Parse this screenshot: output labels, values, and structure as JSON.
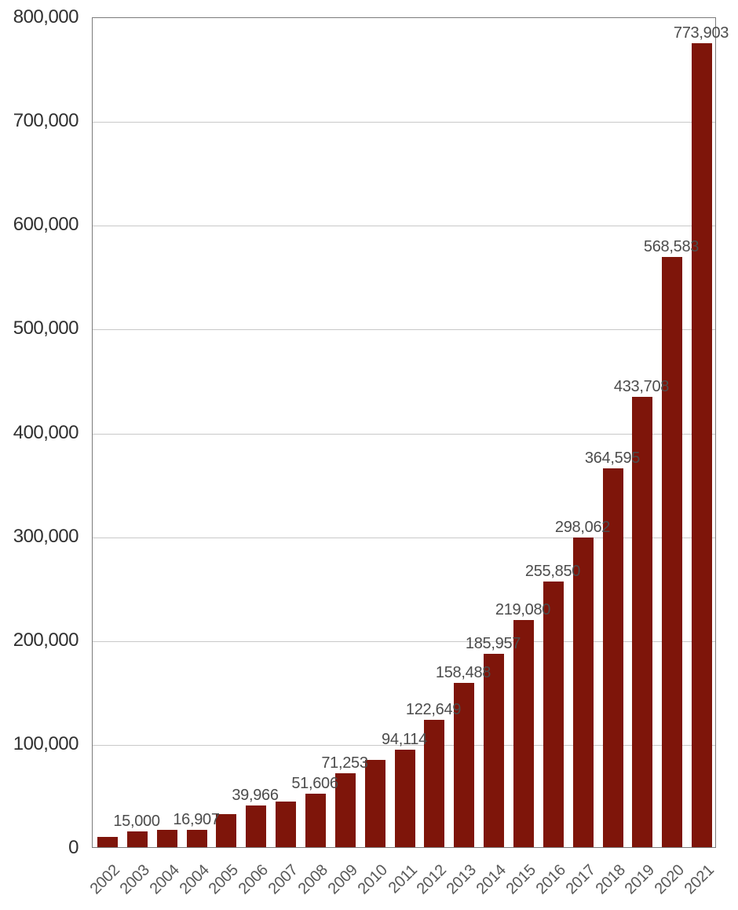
{
  "chart_data": {
    "type": "bar",
    "title": "",
    "xlabel": "",
    "ylabel": "",
    "categories": [
      "2002",
      "2003",
      "2004",
      "2004",
      "2005",
      "2006",
      "2007",
      "2008",
      "2009",
      "2010",
      "2011",
      "2012",
      "2013",
      "2014",
      "2015",
      "2016",
      "2017",
      "2018",
      "2019",
      "2020",
      "2021"
    ],
    "values": [
      10000,
      15000,
      16500,
      16907,
      32000,
      39966,
      44000,
      51606,
      71253,
      84000,
      94114,
      122649,
      158488,
      185957,
      219080,
      255850,
      298062,
      364595,
      433708,
      568583,
      773903
    ],
    "bar_labels": [
      "",
      "15,000",
      "",
      "16,907",
      "",
      "39,966",
      "",
      "51,606",
      "71,253",
      "",
      "94,114",
      "122,649",
      "158,488",
      "185,957",
      "219,080",
      "255,850",
      "298,062",
      "364,595",
      "433,708",
      "568,583",
      "773,903"
    ],
    "y_tick_values": [
      0,
      100000,
      200000,
      300000,
      400000,
      500000,
      600000,
      700000,
      800000
    ],
    "y_tick_labels": [
      "0",
      "100,000",
      "200,000",
      "300,000",
      "400,000",
      "500,000",
      "600,000",
      "700,000",
      "800,000"
    ],
    "ylim": [
      0,
      800000
    ],
    "grid": "horizontal-only",
    "legend": "none",
    "x_label_rotation_deg": -45,
    "colors": {
      "bar": "#7e150a",
      "gridline": "#c9c9c9",
      "plot_border": "#7b7b7b",
      "y_tick_text": "#303030",
      "bar_label_text": "#4c4c4c",
      "year_label_text": "#585858",
      "background": "#ffffff"
    }
  }
}
